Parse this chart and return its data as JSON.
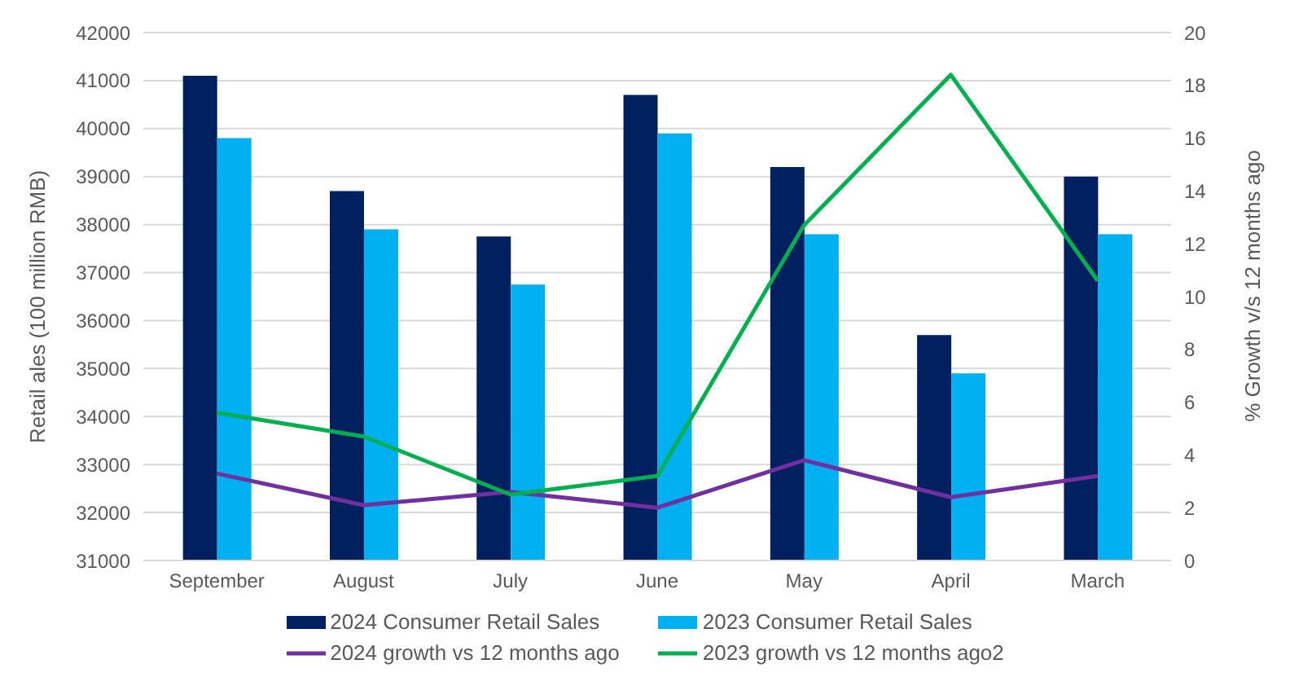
{
  "chart_data": {
    "type": "bar",
    "categories": [
      "September",
      "August",
      "July",
      "June",
      "May",
      "April",
      "March"
    ],
    "ylabel": "Retail ales (100 million RMB)",
    "y2label": "% Growth v/s 12 months ago",
    "ylim": [
      31000,
      42000
    ],
    "yticks": [
      31000,
      32000,
      33000,
      34000,
      35000,
      36000,
      37000,
      38000,
      39000,
      40000,
      41000,
      42000
    ],
    "y2lim": [
      0,
      20
    ],
    "y2ticks": [
      0,
      2,
      4,
      6,
      8,
      10,
      12,
      14,
      16,
      18,
      20
    ],
    "grid": "y",
    "legend": "bottom",
    "marker": "none",
    "line_style": "solid",
    "series": [
      {
        "name": "2024 Consumer Retail Sales",
        "color": "#002060",
        "values": [
          41100,
          38700,
          37750,
          40700,
          39200,
          35700,
          39000
        ]
      },
      {
        "name": "2023 Consumer Retail Sales",
        "color": "#00b0f0",
        "values": [
          39800,
          37900,
          36750,
          39900,
          37800,
          34900,
          37800
        ]
      },
      {
        "name": "2024 growth vs 12 months ago",
        "type": "line",
        "axis": "y2",
        "color": "#7030a0",
        "values": [
          3.3,
          2.1,
          2.6,
          2.0,
          3.8,
          2.4,
          3.2
        ]
      },
      {
        "name": "2023 growth vs 12 months ago2",
        "type": "line",
        "axis": "y2",
        "color": "#00b050",
        "values": [
          5.6,
          4.7,
          2.5,
          3.2,
          12.7,
          18.4,
          10.6
        ]
      }
    ]
  }
}
